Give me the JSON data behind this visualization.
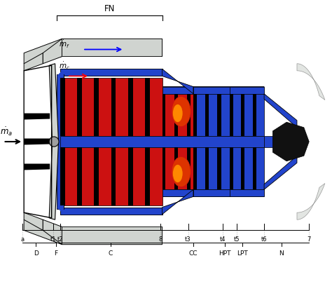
{
  "bg_color": "#ffffff",
  "fig_width": 4.74,
  "fig_height": 4.06,
  "dpi": 100,
  "fn_label": "FN",
  "mdot_f": "$\\dot{m}_f$",
  "mdot_c": "$\\dot{m}_c$",
  "mdot_a": "$\\dot{m}_a$",
  "blue": "#2244cc",
  "red": "#cc1111",
  "black": "#000000",
  "lgray": "#d0d4d0",
  "mgray": "#a0a0a0",
  "dgray": "#606060",
  "white": "#ffffff",
  "stations_x": [
    0.55,
    1.45,
    1.65,
    4.55,
    5.35,
    6.35,
    6.75,
    7.55,
    8.85
  ],
  "stations_lbl": [
    "a",
    "t1",
    "t2",
    "8",
    "t3",
    "t4",
    "t5",
    "t6",
    "7"
  ],
  "comp_x": [
    0.95,
    1.52,
    3.1,
    5.5,
    6.42,
    6.92,
    8.05
  ],
  "comp_lbl": [
    "D",
    "F",
    "C",
    "CC",
    "HPT",
    "LPT",
    "N"
  ]
}
